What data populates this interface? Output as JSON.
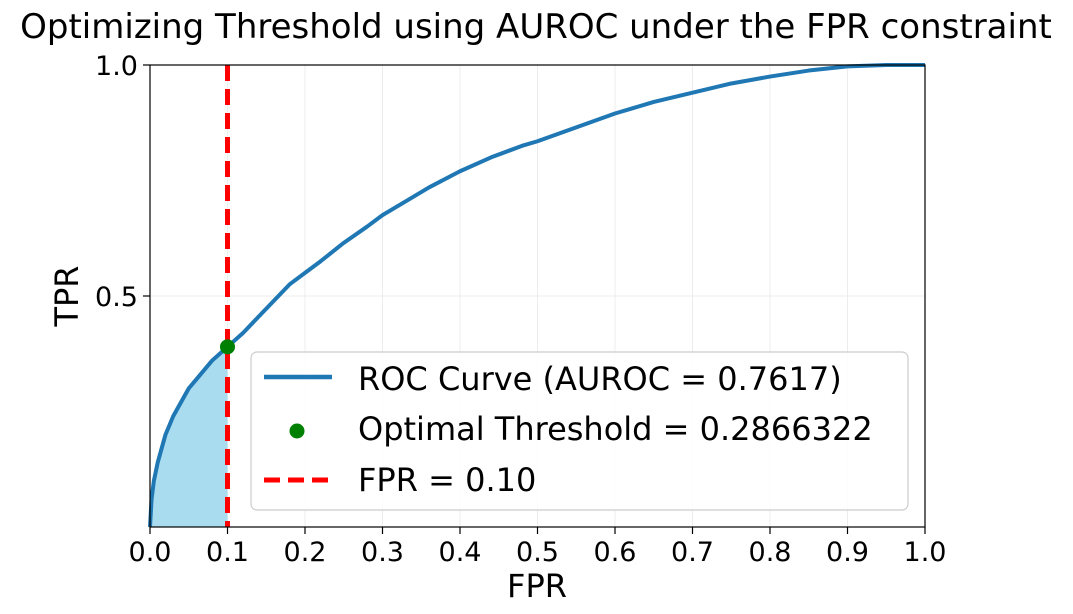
{
  "chart_data": {
    "type": "line",
    "title": "Optimizing Threshold using AUROC under the FPR constraint",
    "xlabel": "FPR",
    "ylabel": "TPR",
    "xlim": [
      0.0,
      1.0
    ],
    "ylim": [
      0.0,
      1.0
    ],
    "x_ticks": [
      "0.0",
      "0.1",
      "0.2",
      "0.3",
      "0.4",
      "0.5",
      "0.6",
      "0.7",
      "0.8",
      "0.9",
      "1.0"
    ],
    "y_ticks": [
      "0.5",
      "1.0"
    ],
    "grid": true,
    "legend_position": "lower-right",
    "series": [
      {
        "name": "ROC Curve (AUROC = 0.7617)",
        "kind": "line",
        "color": "#1f77b4",
        "x": [
          0.0,
          0.002,
          0.005,
          0.01,
          0.015,
          0.02,
          0.03,
          0.04,
          0.05,
          0.06,
          0.07,
          0.08,
          0.09,
          0.1,
          0.12,
          0.14,
          0.16,
          0.18,
          0.2,
          0.22,
          0.25,
          0.28,
          0.3,
          0.33,
          0.36,
          0.4,
          0.44,
          0.48,
          0.5,
          0.55,
          0.6,
          0.65,
          0.7,
          0.75,
          0.8,
          0.85,
          0.9,
          0.95,
          1.0
        ],
        "y": [
          0.0,
          0.06,
          0.1,
          0.14,
          0.17,
          0.2,
          0.24,
          0.27,
          0.3,
          0.32,
          0.34,
          0.36,
          0.375,
          0.39,
          0.42,
          0.455,
          0.49,
          0.525,
          0.55,
          0.575,
          0.615,
          0.65,
          0.675,
          0.705,
          0.735,
          0.77,
          0.8,
          0.825,
          0.835,
          0.865,
          0.895,
          0.92,
          0.94,
          0.96,
          0.975,
          0.988,
          0.997,
          1.0,
          1.0
        ]
      },
      {
        "name": "Optimal Threshold = 0.2866322",
        "kind": "point",
        "color": "#008000",
        "x": [
          0.1
        ],
        "y": [
          0.39
        ]
      },
      {
        "name": "FPR = 0.10",
        "kind": "vline",
        "color": "#ff0000",
        "x": [
          0.1
        ]
      }
    ],
    "shaded_region": {
      "x_max": 0.1,
      "color": "#aadcf0"
    }
  }
}
